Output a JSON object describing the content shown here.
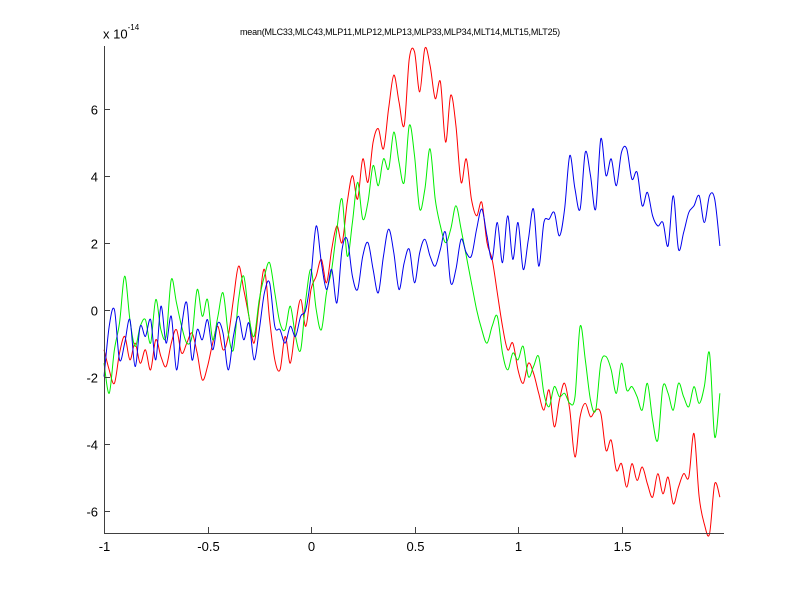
{
  "chart_data": {
    "type": "line",
    "title": "mean(MLC33,MLC43,MLP11,MLP12,MLP13,MLP33,MLP34,MLT14,MLT15,MLT25)",
    "xlabel": "",
    "ylabel": "",
    "y_exponent_label": "x 10",
    "y_exponent_power": "-14",
    "xlim": [
      -1,
      1.995
    ],
    "ylim": [
      -6.67,
      7.87
    ],
    "grid": false,
    "legend": null,
    "x_ticks": [
      -1,
      -0.5,
      0,
      0.5,
      1,
      1.5
    ],
    "x_tick_labels": [
      "-1",
      "-0.5",
      "0",
      "0.5",
      "1",
      "1.5"
    ],
    "y_ticks": [
      -6,
      -4,
      -2,
      0,
      2,
      4,
      6
    ],
    "y_tick_labels": [
      "-6",
      "-4",
      "-2",
      "0",
      "2",
      "4",
      "6"
    ],
    "x_start": -1,
    "x_step": 0.025,
    "series": [
      {
        "name": "red",
        "color": "#ff0000",
        "values": [
          -1.2,
          -1.8,
          -2.2,
          -1.3,
          -0.8,
          -1.5,
          -1.0,
          -1.6,
          -1.2,
          -1.8,
          -0.9,
          -1.4,
          -1.7,
          -1.0,
          -0.6,
          -1.3,
          -1.0,
          -0.7,
          -1.3,
          -2.1,
          -1.7,
          -1.0,
          -0.5,
          -1.2,
          -0.8,
          0.3,
          1.3,
          0.6,
          -0.2,
          -1.0,
          0.2,
          1.2,
          -0.3,
          -1.5,
          -1.8,
          -0.8,
          -1.6,
          -0.5,
          0.3,
          -0.5,
          0.6,
          1.0,
          1.5,
          0.8,
          1.8,
          2.5,
          2.0,
          3.2,
          4.0,
          3.3,
          4.5,
          3.8,
          5.0,
          5.4,
          4.8,
          6.0,
          7.0,
          6.2,
          5.5,
          7.5,
          7.7,
          6.5,
          7.8,
          7.3,
          6.3,
          6.8,
          5.0,
          6.4,
          5.5,
          3.8,
          4.5,
          3.3,
          2.8,
          3.2,
          2.0,
          1.5,
          0.5,
          -0.5,
          -1.2,
          -1.0,
          -1.8,
          -2.2,
          -1.6,
          -1.9,
          -2.5,
          -3.0,
          -2.4,
          -3.5,
          -2.7,
          -2.2,
          -3.0,
          -4.4,
          -3.2,
          -2.8,
          -3.2,
          -3.0,
          -3.1,
          -4.2,
          -3.9,
          -4.8,
          -4.6,
          -5.3,
          -4.6,
          -5.1,
          -4.7,
          -5.2,
          -5.6,
          -4.9,
          -5.5,
          -5.0,
          -5.8,
          -5.3,
          -4.9,
          -5.0,
          -3.7,
          -5.6,
          -6.4,
          -6.7,
          -5.2,
          -5.6,
          -4.6,
          -6.0
        ]
      },
      {
        "name": "green",
        "color": "#00ee00",
        "values": [
          -1.6,
          -2.5,
          -1.2,
          -0.4,
          1.0,
          -0.3,
          -1.1,
          -0.5,
          -0.3,
          -1.0,
          0.3,
          -0.6,
          -0.8,
          0.9,
          0.2,
          -0.5,
          -1.0,
          -0.8,
          0.6,
          -0.2,
          0.3,
          -0.9,
          -0.2,
          0.5,
          -0.7,
          -1.2,
          0.3,
          1.0,
          -0.2,
          -0.8,
          0.3,
          1.0,
          1.4,
          0.5,
          -0.4,
          -0.6,
          0.1,
          -0.8,
          -1.2,
          0.3,
          1.2,
          0.0,
          -0.6,
          0.5,
          1.2,
          2.4,
          3.3,
          1.6,
          2.6,
          3.8,
          2.7,
          3.2,
          4.3,
          3.7,
          4.5,
          4.2,
          5.3,
          4.4,
          3.8,
          5.5,
          4.6,
          3.0,
          3.6,
          4.8,
          3.3,
          2.5,
          2.0,
          2.4,
          3.1,
          2.4,
          1.6,
          0.8,
          0.0,
          -0.6,
          -1.0,
          -0.5,
          -0.2,
          -1.3,
          -1.8,
          -1.3,
          -1.5,
          -1.1,
          -2.0,
          -1.7,
          -1.4,
          -2.5,
          -2.9,
          -2.3,
          -2.6,
          -2.5,
          -2.8,
          -2.6,
          -0.5,
          -1.5,
          -2.7,
          -3.0,
          -1.6,
          -1.4,
          -1.8,
          -2.5,
          -1.6,
          -2.4,
          -2.3,
          -2.6,
          -3.0,
          -2.2,
          -3.3,
          -3.9,
          -2.3,
          -2.5,
          -3.0,
          -2.2,
          -2.6,
          -2.9,
          -2.3,
          -2.8,
          -2.3,
          -1.3,
          -3.8,
          -2.5
        ]
      },
      {
        "name": "blue",
        "color": "#0000ee",
        "values": [
          -2.0,
          -0.5,
          0.0,
          -1.5,
          -1.0,
          -0.3,
          -1.7,
          -0.5,
          -0.8,
          -0.3,
          -1.5,
          0.1,
          -1.0,
          -0.2,
          -1.8,
          -0.5,
          0.2,
          -1.5,
          -0.6,
          -0.9,
          -0.3,
          -1.2,
          -0.4,
          -0.7,
          -1.8,
          -0.8,
          -0.2,
          -0.9,
          -0.4,
          -1.5,
          -0.6,
          0.5,
          0.8,
          -0.5,
          -0.6,
          -1.0,
          -0.5,
          -0.8,
          -0.2,
          0.0,
          1.0,
          2.5,
          1.4,
          0.6,
          1.2,
          0.2,
          1.8,
          2.1,
          1.0,
          0.6,
          1.6,
          2.0,
          1.2,
          0.5,
          1.6,
          2.4,
          1.7,
          0.6,
          1.4,
          1.8,
          0.8,
          1.7,
          2.1,
          1.6,
          1.3,
          1.8,
          2.3,
          0.8,
          1.2,
          2.1,
          1.7,
          1.6,
          2.4,
          3.0,
          2.2,
          1.5,
          2.6,
          1.4,
          2.8,
          1.5,
          2.6,
          1.2,
          2.1,
          3.0,
          1.3,
          2.6,
          2.7,
          2.9,
          2.2,
          3.0,
          4.6,
          3.6,
          3.0,
          4.7,
          4.0,
          3.0,
          5.1,
          4.0,
          4.5,
          3.7,
          4.7,
          4.8,
          3.9,
          4.1,
          3.1,
          3.5,
          2.8,
          2.5,
          2.6,
          1.9,
          3.4,
          1.8,
          2.3,
          2.9,
          3.1,
          3.4,
          2.6,
          3.4,
          3.3,
          1.9,
          2.6
        ]
      }
    ]
  },
  "axes": {
    "title": "mean(MLC33,MLC43,MLP11,MLP12,MLP13,MLP33,MLP34,MLT14,MLT15,MLT25)",
    "exponent_base": "x 10",
    "exponent_power": "-14"
  }
}
